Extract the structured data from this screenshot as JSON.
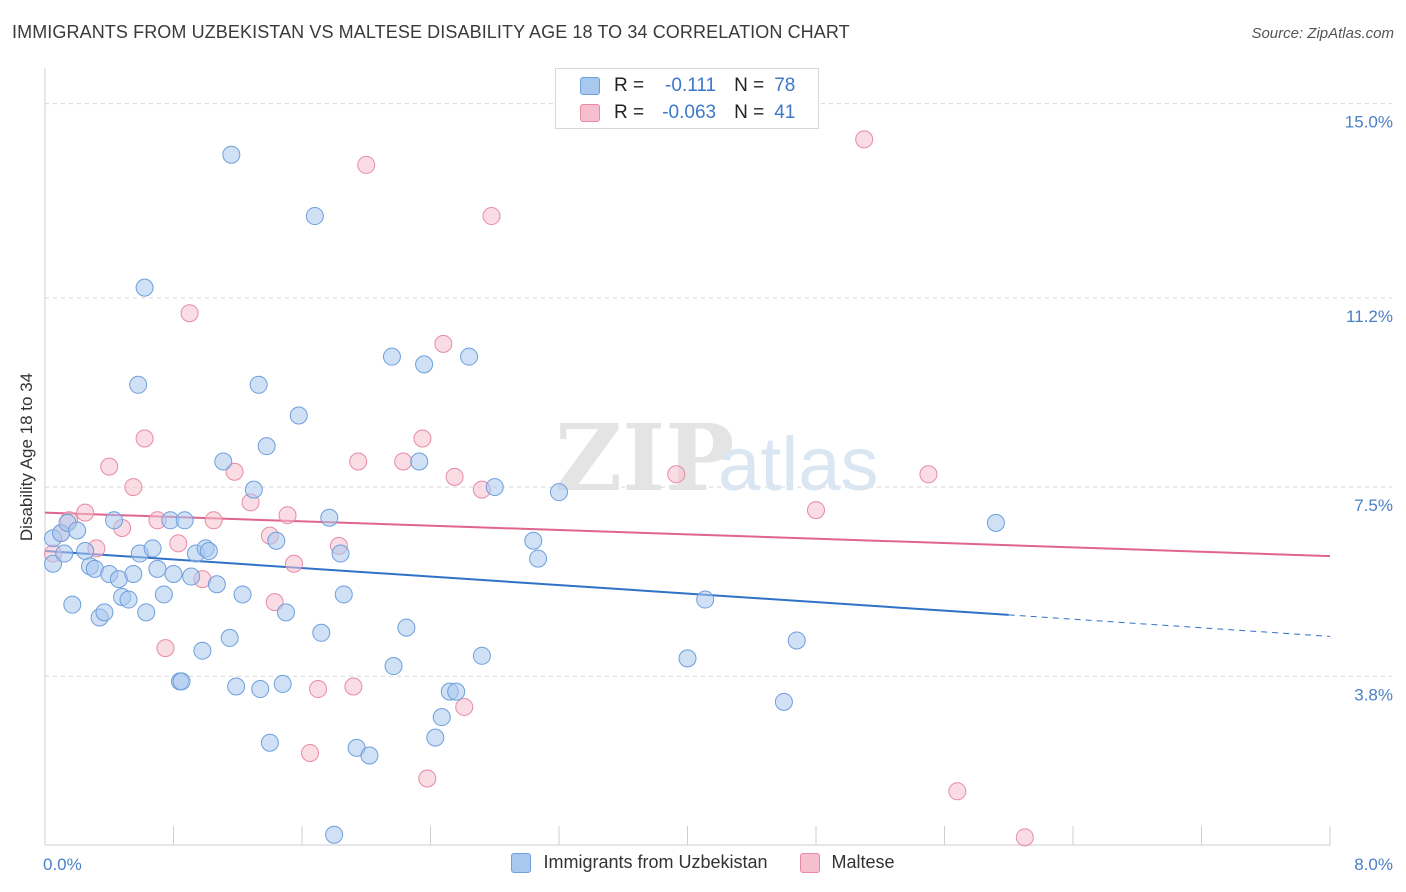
{
  "title": "IMMIGRANTS FROM UZBEKISTAN VS MALTESE DISABILITY AGE 18 TO 34 CORRELATION CHART",
  "source": "Source: ZipAtlas.com",
  "watermark": {
    "zip": "ZIP",
    "atlas": "atlas"
  },
  "legend": {
    "rows": [
      {
        "r_label": "R =",
        "r_value": "-0.111",
        "n_label": "N =",
        "n_value": "78",
        "color": "#a9c8ee",
        "stroke": "#6d9fdc"
      },
      {
        "r_label": "R =",
        "r_value": "-0.063",
        "n_label": "N =",
        "n_value": "41",
        "color": "#f6bfd0",
        "stroke": "#e88aa6"
      }
    ]
  },
  "bottom_legend": [
    {
      "label": "Immigrants from Uzbekistan",
      "color": "#a9c8ee",
      "stroke": "#6d9fdc"
    },
    {
      "label": "Maltese",
      "color": "#f6bfd0",
      "stroke": "#e88aa6"
    }
  ],
  "chart_data": {
    "type": "scatter",
    "title": "IMMIGRANTS FROM UZBEKISTAN VS MALTESE DISABILITY AGE 18 TO 34 CORRELATION CHART",
    "xlabel": "",
    "ylabel": "Disability Age 18 to 34",
    "xlim": [
      0,
      8
    ],
    "ylim": [
      0.5,
      15.5
    ],
    "x_tick_labels": [
      {
        "value": 0,
        "label": "0.0%"
      },
      {
        "value": 8,
        "label": "8.0%"
      }
    ],
    "y_tick_labels": [
      {
        "value": 3.8,
        "label": "3.8%"
      },
      {
        "value": 7.5,
        "label": "7.5%"
      },
      {
        "value": 11.2,
        "label": "11.2%"
      },
      {
        "value": 15.0,
        "label": "15.0%"
      }
    ],
    "grid": true,
    "legend_position": "top-center",
    "series": [
      {
        "name": "Immigrants from Uzbekistan",
        "color": "#a9c8ee",
        "stroke": "#6d9fdc",
        "trend": {
          "x0": 0,
          "y0": 6.25,
          "x1": 6.0,
          "y1": 5.0,
          "dash_to_x": 8.0,
          "dash_to_y": 4.58
        },
        "points": [
          [
            0.05,
            6.5
          ],
          [
            0.05,
            6.0
          ],
          [
            0.1,
            6.6
          ],
          [
            0.12,
            6.2
          ],
          [
            0.14,
            6.8
          ],
          [
            0.17,
            5.2
          ],
          [
            0.2,
            6.65
          ],
          [
            0.25,
            6.25
          ],
          [
            0.28,
            5.95
          ],
          [
            0.31,
            5.9
          ],
          [
            0.34,
            4.95
          ],
          [
            0.37,
            5.05
          ],
          [
            0.4,
            5.8
          ],
          [
            0.43,
            6.85
          ],
          [
            0.46,
            5.7
          ],
          [
            0.48,
            5.35
          ],
          [
            0.52,
            5.3
          ],
          [
            0.55,
            5.8
          ],
          [
            0.59,
            6.2
          ],
          [
            0.63,
            5.05
          ],
          [
            0.67,
            6.3
          ],
          [
            0.7,
            5.9
          ],
          [
            0.74,
            5.4
          ],
          [
            0.78,
            6.85
          ],
          [
            0.8,
            5.8
          ],
          [
            0.84,
            3.7
          ],
          [
            0.87,
            6.85
          ],
          [
            0.91,
            5.75
          ],
          [
            0.94,
            6.2
          ],
          [
            0.98,
            4.3
          ],
          [
            1.0,
            6.3
          ],
          [
            1.02,
            6.25
          ],
          [
            1.07,
            5.6
          ],
          [
            1.11,
            8.0
          ],
          [
            1.15,
            4.55
          ],
          [
            1.19,
            3.6
          ],
          [
            1.23,
            5.4
          ],
          [
            1.3,
            7.45
          ],
          [
            1.34,
            3.55
          ],
          [
            1.38,
            8.3
          ],
          [
            1.4,
            2.5
          ],
          [
            1.44,
            6.45
          ],
          [
            1.48,
            3.65
          ],
          [
            1.5,
            5.05
          ],
          [
            1.58,
            8.9
          ],
          [
            1.72,
            4.65
          ],
          [
            1.77,
            6.9
          ],
          [
            1.86,
            5.4
          ],
          [
            1.84,
            6.2
          ],
          [
            1.8,
            0.7
          ],
          [
            1.94,
            2.4
          ],
          [
            2.02,
            2.25
          ],
          [
            2.17,
            4.0
          ],
          [
            2.16,
            10.05
          ],
          [
            2.25,
            4.75
          ],
          [
            2.33,
            8.0
          ],
          [
            2.36,
            9.9
          ],
          [
            2.43,
            2.6
          ],
          [
            2.47,
            3.0
          ],
          [
            2.52,
            3.5
          ],
          [
            2.56,
            3.5
          ],
          [
            2.64,
            10.05
          ],
          [
            2.72,
            4.2
          ],
          [
            2.8,
            7.5
          ],
          [
            3.04,
            6.45
          ],
          [
            3.07,
            6.1
          ],
          [
            3.2,
            7.4
          ],
          [
            4.0,
            4.15
          ],
          [
            4.11,
            5.3
          ],
          [
            4.6,
            3.3
          ],
          [
            4.68,
            4.5
          ],
          [
            5.92,
            6.8
          ],
          [
            1.16,
            14.0
          ],
          [
            1.68,
            12.8
          ],
          [
            0.62,
            11.4
          ],
          [
            1.33,
            9.5
          ],
          [
            0.58,
            9.5
          ],
          [
            0.85,
            3.7
          ]
        ]
      },
      {
        "name": "Maltese",
        "color": "#f6bfd0",
        "stroke": "#e88aa6",
        "trend": {
          "x0": 0,
          "y0": 7.0,
          "x1": 8.0,
          "y1": 6.15
        },
        "points": [
          [
            0.05,
            6.2
          ],
          [
            0.1,
            6.6
          ],
          [
            0.15,
            6.85
          ],
          [
            0.25,
            7.0
          ],
          [
            0.32,
            6.3
          ],
          [
            0.4,
            7.9
          ],
          [
            0.48,
            6.7
          ],
          [
            0.55,
            7.5
          ],
          [
            0.62,
            8.45
          ],
          [
            0.7,
            6.85
          ],
          [
            0.75,
            4.35
          ],
          [
            0.83,
            6.4
          ],
          [
            0.9,
            10.9
          ],
          [
            0.98,
            5.7
          ],
          [
            1.05,
            6.85
          ],
          [
            1.18,
            7.8
          ],
          [
            1.28,
            7.2
          ],
          [
            1.4,
            6.55
          ],
          [
            1.43,
            5.25
          ],
          [
            1.51,
            6.95
          ],
          [
            1.55,
            6.0
          ],
          [
            1.65,
            2.3
          ],
          [
            1.7,
            3.55
          ],
          [
            1.83,
            6.35
          ],
          [
            1.92,
            3.6
          ],
          [
            1.95,
            8.0
          ],
          [
            2.0,
            13.8
          ],
          [
            2.23,
            8.0
          ],
          [
            2.35,
            8.45
          ],
          [
            2.38,
            1.8
          ],
          [
            2.48,
            10.3
          ],
          [
            2.55,
            7.7
          ],
          [
            2.61,
            3.2
          ],
          [
            2.72,
            7.45
          ],
          [
            2.78,
            12.8
          ],
          [
            3.93,
            7.75
          ],
          [
            4.8,
            7.05
          ],
          [
            5.1,
            14.3
          ],
          [
            5.5,
            7.75
          ],
          [
            5.68,
            1.55
          ],
          [
            6.1,
            0.65
          ]
        ]
      }
    ]
  }
}
